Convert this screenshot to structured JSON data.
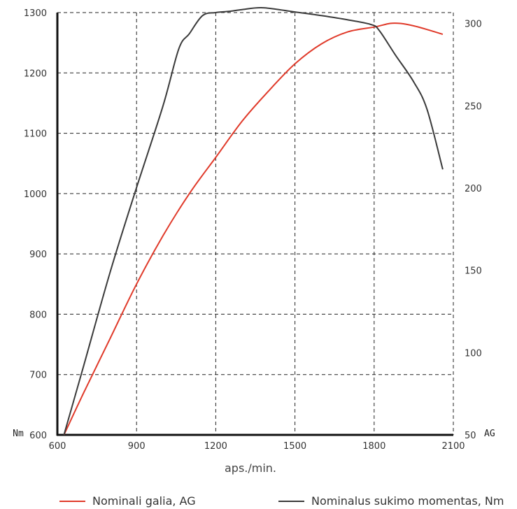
{
  "chart_data": {
    "type": "line",
    "xlabel": "aps./min.",
    "xlim": [
      600,
      2100
    ],
    "x_ticks": [
      600,
      900,
      1200,
      1500,
      1800,
      2100
    ],
    "y_left": {
      "unit": "Nm",
      "ylim": [
        600,
        1300
      ],
      "ticks": [
        600,
        700,
        800,
        900,
        1000,
        1100,
        1200,
        1300
      ]
    },
    "y_right": {
      "unit": "AG",
      "ticks": [
        50,
        100,
        150,
        200,
        250,
        300
      ],
      "scale_reference": {
        "y1_left": 600,
        "y1_right": 50,
        "y2_left": 1200,
        "y2_right": 270
      }
    },
    "grid": true,
    "legend_position": "bottom",
    "series": [
      {
        "name": "Nominali galia, AG",
        "color": "#e03a2a",
        "axis": "left",
        "points": [
          [
            625,
            600
          ],
          [
            700,
            670
          ],
          [
            800,
            760
          ],
          [
            900,
            850
          ],
          [
            1000,
            930
          ],
          [
            1100,
            1000
          ],
          [
            1200,
            1060
          ],
          [
            1300,
            1120
          ],
          [
            1400,
            1170
          ],
          [
            1500,
            1215
          ],
          [
            1600,
            1248
          ],
          [
            1700,
            1268
          ],
          [
            1800,
            1276
          ],
          [
            1860,
            1282
          ],
          [
            1900,
            1282
          ],
          [
            1950,
            1278
          ],
          [
            2000,
            1272
          ],
          [
            2060,
            1264
          ]
        ]
      },
      {
        "name": "Nominalus sukimo momentas, Nm",
        "color": "#3a3a3a",
        "axis": "left",
        "points": [
          [
            625,
            600
          ],
          [
            700,
            715
          ],
          [
            800,
            870
          ],
          [
            900,
            1010
          ],
          [
            1000,
            1145
          ],
          [
            1060,
            1240
          ],
          [
            1100,
            1265
          ],
          [
            1150,
            1295
          ],
          [
            1200,
            1300
          ],
          [
            1250,
            1302
          ],
          [
            1300,
            1305
          ],
          [
            1380,
            1308
          ],
          [
            1500,
            1301
          ],
          [
            1600,
            1295
          ],
          [
            1700,
            1288
          ],
          [
            1790,
            1280
          ],
          [
            1820,
            1270
          ],
          [
            1880,
            1230
          ],
          [
            1950,
            1185
          ],
          [
            2000,
            1140
          ],
          [
            2060,
            1040
          ]
        ]
      }
    ]
  }
}
